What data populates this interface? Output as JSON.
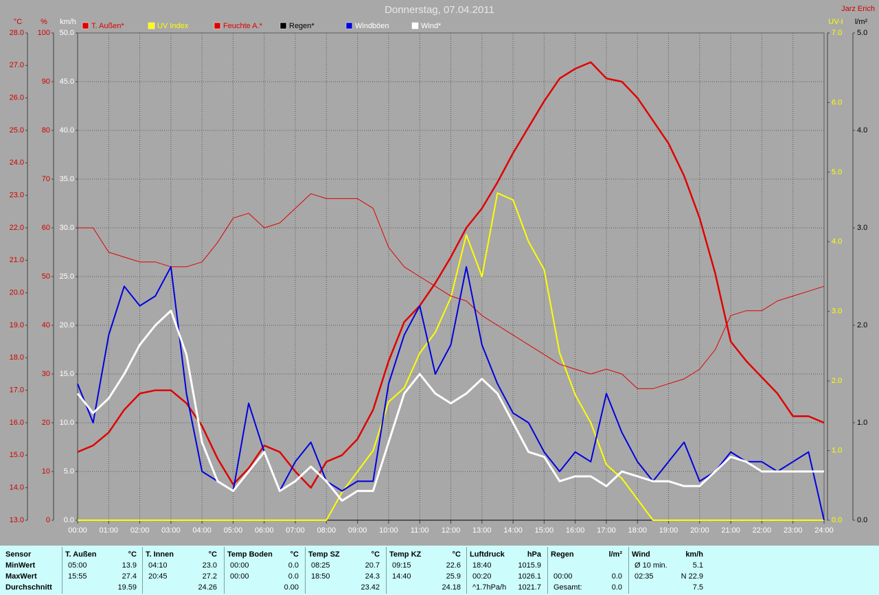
{
  "chart_data": {
    "type": "line",
    "title": "Donnerstag, 07.04.2011",
    "author": "Jarz Erich",
    "x": [
      0,
      0.5,
      1,
      1.5,
      2,
      2.5,
      3,
      3.5,
      4,
      4.5,
      5,
      5.5,
      6,
      6.5,
      7,
      7.5,
      8,
      8.5,
      9,
      9.5,
      10,
      10.5,
      11,
      11.5,
      12,
      12.5,
      13,
      13.5,
      14,
      14.5,
      15,
      15.5,
      16,
      16.5,
      17,
      17.5,
      18,
      18.5,
      19,
      19.5,
      20,
      20.5,
      21,
      21.5,
      22,
      22.5,
      23,
      23.5,
      24
    ],
    "xlim": [
      0,
      24
    ],
    "xticks": [
      {
        "value": 0,
        "label": "00:00"
      },
      {
        "value": 1,
        "label": "01:00"
      },
      {
        "value": 2,
        "label": "02:00"
      },
      {
        "value": 3,
        "label": "03:00"
      },
      {
        "value": 4,
        "label": "04:00"
      },
      {
        "value": 5,
        "label": "05:00"
      },
      {
        "value": 6,
        "label": "06:00"
      },
      {
        "value": 7,
        "label": "07:00"
      },
      {
        "value": 8,
        "label": "08:00"
      },
      {
        "value": 9,
        "label": "09:00"
      },
      {
        "value": 10,
        "label": "10:00"
      },
      {
        "value": 11,
        "label": "11:00"
      },
      {
        "value": 12,
        "label": "12:00"
      },
      {
        "value": 13,
        "label": "13:00"
      },
      {
        "value": 14,
        "label": "14:00"
      },
      {
        "value": 15,
        "label": "15:00"
      },
      {
        "value": 16,
        "label": "16:00"
      },
      {
        "value": 17,
        "label": "17:00"
      },
      {
        "value": 18,
        "label": "18:00"
      },
      {
        "value": 19,
        "label": "19:00"
      },
      {
        "value": 20,
        "label": "20:00"
      },
      {
        "value": 21,
        "label": "21:00"
      },
      {
        "value": 22,
        "label": "22:00"
      },
      {
        "value": 23,
        "label": "23:00"
      },
      {
        "value": 24,
        "label": "24:00"
      }
    ],
    "grid": true,
    "axes": [
      {
        "unit": "°C",
        "side": "left",
        "color": "#d00000",
        "lim": [
          13,
          28
        ],
        "ticks": [
          {
            "value": 13,
            "label": "13.0"
          },
          {
            "value": 14,
            "label": "14.0"
          },
          {
            "value": 15,
            "label": "15.0"
          },
          {
            "value": 16,
            "label": "16.0"
          },
          {
            "value": 17,
            "label": "17.0"
          },
          {
            "value": 18,
            "label": "18.0"
          },
          {
            "value": 19,
            "label": "19.0"
          },
          {
            "value": 20,
            "label": "20.0"
          },
          {
            "value": 21,
            "label": "21.0"
          },
          {
            "value": 22,
            "label": "22.0"
          },
          {
            "value": 23,
            "label": "23.0"
          },
          {
            "value": 24,
            "label": "24.0"
          },
          {
            "value": 25,
            "label": "25.0"
          },
          {
            "value": 26,
            "label": "26.0"
          },
          {
            "value": 27,
            "label": "27.0"
          },
          {
            "value": 28,
            "label": "28.0"
          }
        ]
      },
      {
        "unit": "%",
        "side": "left",
        "color": "#d00000",
        "grid": true,
        "lim": [
          0,
          100
        ],
        "ticks": [
          0,
          10,
          20,
          30,
          40,
          50,
          60,
          70,
          80,
          90,
          100
        ]
      },
      {
        "unit": "km/h",
        "side": "left",
        "color": "#ffffff",
        "lim": [
          0,
          50
        ],
        "ticks": [
          {
            "value": 0,
            "label": "0.0"
          },
          {
            "value": 5,
            "label": "5.0"
          },
          {
            "value": 10,
            "label": "10.0"
          },
          {
            "value": 15,
            "label": "15.0"
          },
          {
            "value": 20,
            "label": "20.0"
          },
          {
            "value": 25,
            "label": "25.0"
          },
          {
            "value": 30,
            "label": "30.0"
          },
          {
            "value": 35,
            "label": "35.0"
          },
          {
            "value": 40,
            "label": "40.0"
          },
          {
            "value": 45,
            "label": "45.0"
          },
          {
            "value": 50,
            "label": "50.0"
          }
        ]
      },
      {
        "unit": "UV-I",
        "side": "right",
        "color": "#ffff00",
        "lim": [
          0,
          7
        ],
        "ticks": [
          {
            "value": 0,
            "label": "0.0"
          },
          {
            "value": 1,
            "label": "1.0"
          },
          {
            "value": 2,
            "label": "2.0"
          },
          {
            "value": 3,
            "label": "3.0"
          },
          {
            "value": 4,
            "label": "4.0"
          },
          {
            "value": 5,
            "label": "5.0"
          },
          {
            "value": 6,
            "label": "6.0"
          },
          {
            "value": 7,
            "label": "7.0"
          }
        ]
      },
      {
        "unit": "l/m²",
        "side": "right",
        "color": "#000000",
        "lim": [
          0,
          5
        ],
        "ticks": [
          {
            "value": 0,
            "label": "0.0"
          },
          {
            "value": 1,
            "label": "1.0"
          },
          {
            "value": 2,
            "label": "2.0"
          },
          {
            "value": 3,
            "label": "3.0"
          },
          {
            "value": 4,
            "label": "4.0"
          },
          {
            "value": 5,
            "label": "5.0"
          }
        ]
      }
    ],
    "series": [
      {
        "name": "T. Außen*",
        "color": "#e00000",
        "legend_color": "#e00000",
        "axis": 0,
        "line_width": 2.5,
        "values": [
          15.1,
          15.3,
          15.7,
          16.4,
          16.9,
          17.0,
          17.0,
          16.6,
          15.9,
          14.9,
          14.1,
          14.6,
          15.3,
          15.1,
          14.5,
          14.0,
          14.8,
          15.0,
          15.5,
          16.4,
          17.9,
          19.1,
          19.6,
          20.3,
          21.1,
          22.0,
          22.6,
          23.4,
          24.3,
          25.1,
          25.9,
          26.6,
          26.9,
          27.1,
          26.6,
          26.5,
          26.0,
          25.3,
          24.6,
          23.6,
          22.3,
          20.6,
          18.5,
          17.9,
          17.4,
          16.9,
          16.2,
          16.2,
          16.0
        ]
      },
      {
        "name": "UV Index",
        "color": "#ffff00",
        "legend_color": "#ffff00",
        "axis": 3,
        "line_width": 2,
        "values": [
          0,
          0,
          0,
          0,
          0,
          0,
          0,
          0,
          0,
          0,
          0,
          0,
          0,
          0,
          0,
          0,
          0,
          0.4,
          0.7,
          1.0,
          1.7,
          1.9,
          2.4,
          2.7,
          3.2,
          4.1,
          3.5,
          4.7,
          4.6,
          4.0,
          3.6,
          2.4,
          1.8,
          1.4,
          0.8,
          0.6,
          0.3,
          0,
          0,
          0,
          0,
          0,
          0,
          0,
          0,
          0,
          0,
          0,
          0
        ]
      },
      {
        "name": "Feuchte A.*",
        "color": "#e00000",
        "legend_color": "#e00000",
        "axis": 1,
        "line_width": 1,
        "values": [
          60,
          60,
          55,
          54,
          53,
          53,
          52,
          52,
          53,
          57,
          62,
          63,
          60,
          61,
          64,
          67,
          66,
          66,
          66,
          64,
          56,
          52,
          50,
          48,
          46,
          45,
          42,
          40,
          38,
          36,
          34,
          32,
          31,
          30,
          31,
          30,
          27,
          27,
          28,
          29,
          31,
          35,
          42,
          43,
          43,
          45,
          46,
          47,
          48
        ]
      },
      {
        "name": "Regen*",
        "color": "#000000",
        "legend_color": "#000000",
        "axis": 4,
        "line_width": 1,
        "values": [
          0,
          0,
          0,
          0,
          0,
          0,
          0,
          0,
          0,
          0,
          0,
          0,
          0,
          0,
          0,
          0,
          0,
          0,
          0,
          0,
          0,
          0,
          0,
          0,
          0,
          0,
          0,
          0,
          0,
          0,
          0,
          0,
          0,
          0,
          0,
          0,
          0,
          0,
          0,
          0,
          0,
          0,
          0,
          0,
          0,
          0,
          0,
          0,
          0
        ]
      },
      {
        "name": "Windböen",
        "color": "#0000e0",
        "legend_color": "#ffffff",
        "axis": 2,
        "line_width": 2,
        "values": [
          14,
          10,
          19,
          24,
          22,
          23,
          26,
          13,
          5,
          4,
          3,
          12,
          7,
          3,
          6,
          8,
          4,
          3,
          4,
          4,
          14,
          19,
          22,
          15,
          18,
          26,
          18,
          14,
          11,
          10,
          7,
          5,
          7,
          6,
          13,
          9,
          6,
          4,
          6,
          8,
          4,
          5,
          7,
          6,
          6,
          5,
          6,
          7,
          0
        ]
      },
      {
        "name": "Wind*",
        "color": "#ffffff",
        "legend_color": "#ffffff",
        "axis": 2,
        "line_width": 3,
        "values": [
          13,
          11,
          12.5,
          15,
          18,
          20,
          21.5,
          17,
          8,
          4,
          3,
          5,
          7,
          3,
          4,
          5.5,
          4,
          2,
          3,
          3,
          8,
          13,
          15,
          13,
          12,
          13,
          14.5,
          13,
          10,
          7,
          6.5,
          4,
          4.5,
          4.5,
          3.5,
          5,
          4.5,
          4,
          4,
          3.5,
          3.5,
          5,
          6.5,
          6,
          5,
          5,
          5,
          5,
          5
        ]
      }
    ]
  },
  "table": {
    "header": "Sensor",
    "row_labels": [
      "MinWert",
      "MaxWert",
      "Durchschnitt"
    ],
    "groups": [
      {
        "name": "T. Außen",
        "unit": "°C",
        "rows": [
          {
            "time": "05:00",
            "value": "13.9"
          },
          {
            "time": "15:55",
            "value": "27.4"
          },
          {
            "value": "19.59"
          }
        ]
      },
      {
        "name": "T. Innen",
        "unit": "°C",
        "rows": [
          {
            "time": "04:10",
            "value": "23.0"
          },
          {
            "time": "20:45",
            "value": "27.2"
          },
          {
            "value": "24.26"
          }
        ]
      },
      {
        "name": "Temp Boden",
        "unit": "°C",
        "rows": [
          {
            "time": "00:00",
            "value": "0.0"
          },
          {
            "time": "00:00",
            "value": "0.0"
          },
          {
            "value": "0.00"
          }
        ]
      },
      {
        "name": "Temp SZ",
        "unit": "°C",
        "rows": [
          {
            "time": "08:25",
            "value": "20.7"
          },
          {
            "time": "18:50",
            "value": "24.3"
          },
          {
            "value": "23.42"
          }
        ]
      },
      {
        "name": "Temp KZ",
        "unit": "°C",
        "rows": [
          {
            "time": "09:15",
            "value": "22.6"
          },
          {
            "time": "14:40",
            "value": "25.9"
          },
          {
            "value": "24.18"
          }
        ]
      },
      {
        "name": "Luftdruck",
        "unit": "hPa",
        "rows": [
          {
            "time": "18:40",
            "value": "1015.9"
          },
          {
            "time": "00:20",
            "value": "1026.1"
          },
          {
            "time": "^1.7hPa/h",
            "value": "1021.7"
          }
        ]
      },
      {
        "name": "Regen",
        "unit": "l/m²",
        "rows": [
          {},
          {
            "time": "00:00",
            "value": "0.0"
          },
          {
            "time": "Gesamt:",
            "value": "0.0"
          }
        ]
      },
      {
        "name": "Wind",
        "unit": "km/h",
        "rows": [
          {
            "time": "Ø 10 min.",
            "value": "5.1"
          },
          {
            "time": "02:35",
            "value": "N 22.9"
          },
          {
            "value": "7.5"
          }
        ]
      }
    ]
  }
}
